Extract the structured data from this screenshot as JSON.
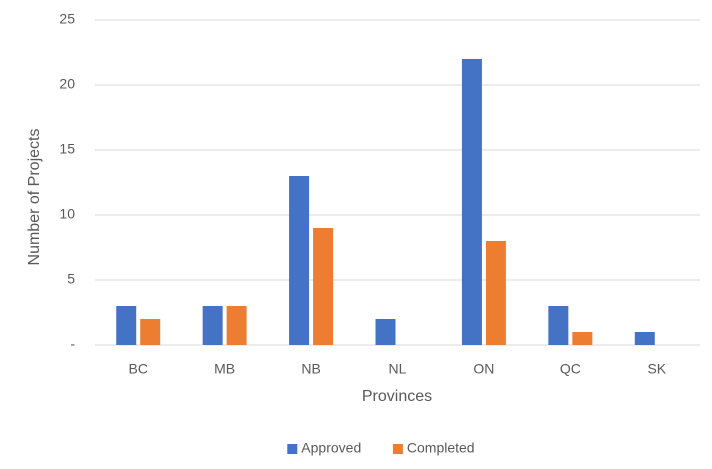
{
  "chart_data": {
    "type": "bar",
    "x_label": "Provinces",
    "y_label": "Number of Projects",
    "categories": [
      "BC",
      "MB",
      "NB",
      "NL",
      "ON",
      "QC",
      "SK"
    ],
    "series": [
      {
        "name": "Approved",
        "color": "#4472c4",
        "values": [
          3,
          3,
          13,
          2,
          22,
          3,
          1
        ]
      },
      {
        "name": "Completed",
        "color": "#ed7d31",
        "values": [
          2,
          3,
          9,
          0,
          8,
          1,
          0
        ]
      }
    ],
    "ylim": [
      0,
      25
    ],
    "yticks": [
      {
        "value": 0,
        "label": "-"
      },
      5,
      10,
      15,
      20,
      25
    ],
    "grid": true,
    "legend": "bottom"
  }
}
